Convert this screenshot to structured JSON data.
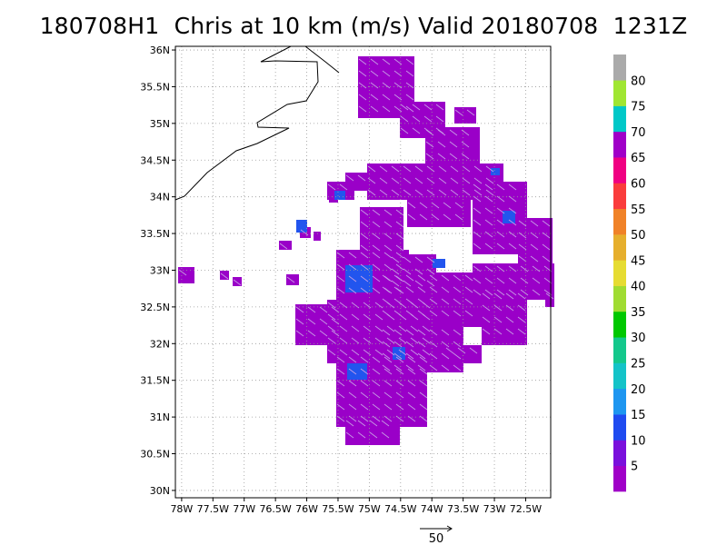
{
  "title": "180708H1  Chris at 10 km (m/s) Valid 20180708  1231Z",
  "map": {
    "lat_ticks": [
      "30N",
      "30.5N",
      "31N",
      "31.5N",
      "32N",
      "32.5N",
      "33N",
      "33.5N",
      "34N",
      "34.5N",
      "35N",
      "35.5N",
      "36N"
    ],
    "lon_ticks": [
      "78W",
      "77.5W",
      "77W",
      "76.5W",
      "76W",
      "75.5W",
      "75W",
      "74.5W",
      "74W",
      "73.5W",
      "73W",
      "72.5W"
    ],
    "lat_range": [
      29.9,
      36.05
    ],
    "lon_range": [
      -78.1,
      -72.1
    ],
    "grid": true,
    "field_color": "#9a00c8",
    "low_wind_color": "#2255ee",
    "coast_color": "#000000"
  },
  "colorbar": {
    "labels": [
      "5",
      "10",
      "15",
      "20",
      "25",
      "30",
      "35",
      "40",
      "45",
      "50",
      "55",
      "60",
      "65",
      "70",
      "75",
      "80"
    ],
    "colors": [
      "#a000c8",
      "#7a10dc",
      "#1f4bf0",
      "#1e96f0",
      "#14c3c8",
      "#14c88c",
      "#00c800",
      "#a0dc32",
      "#e6dc32",
      "#e6af2d",
      "#f08228",
      "#fa3c3c",
      "#f00082",
      "#a000c8",
      "#00c8c8",
      "#a0e632",
      "#aaaaaa"
    ]
  },
  "reference_vector": {
    "label": "50"
  }
}
